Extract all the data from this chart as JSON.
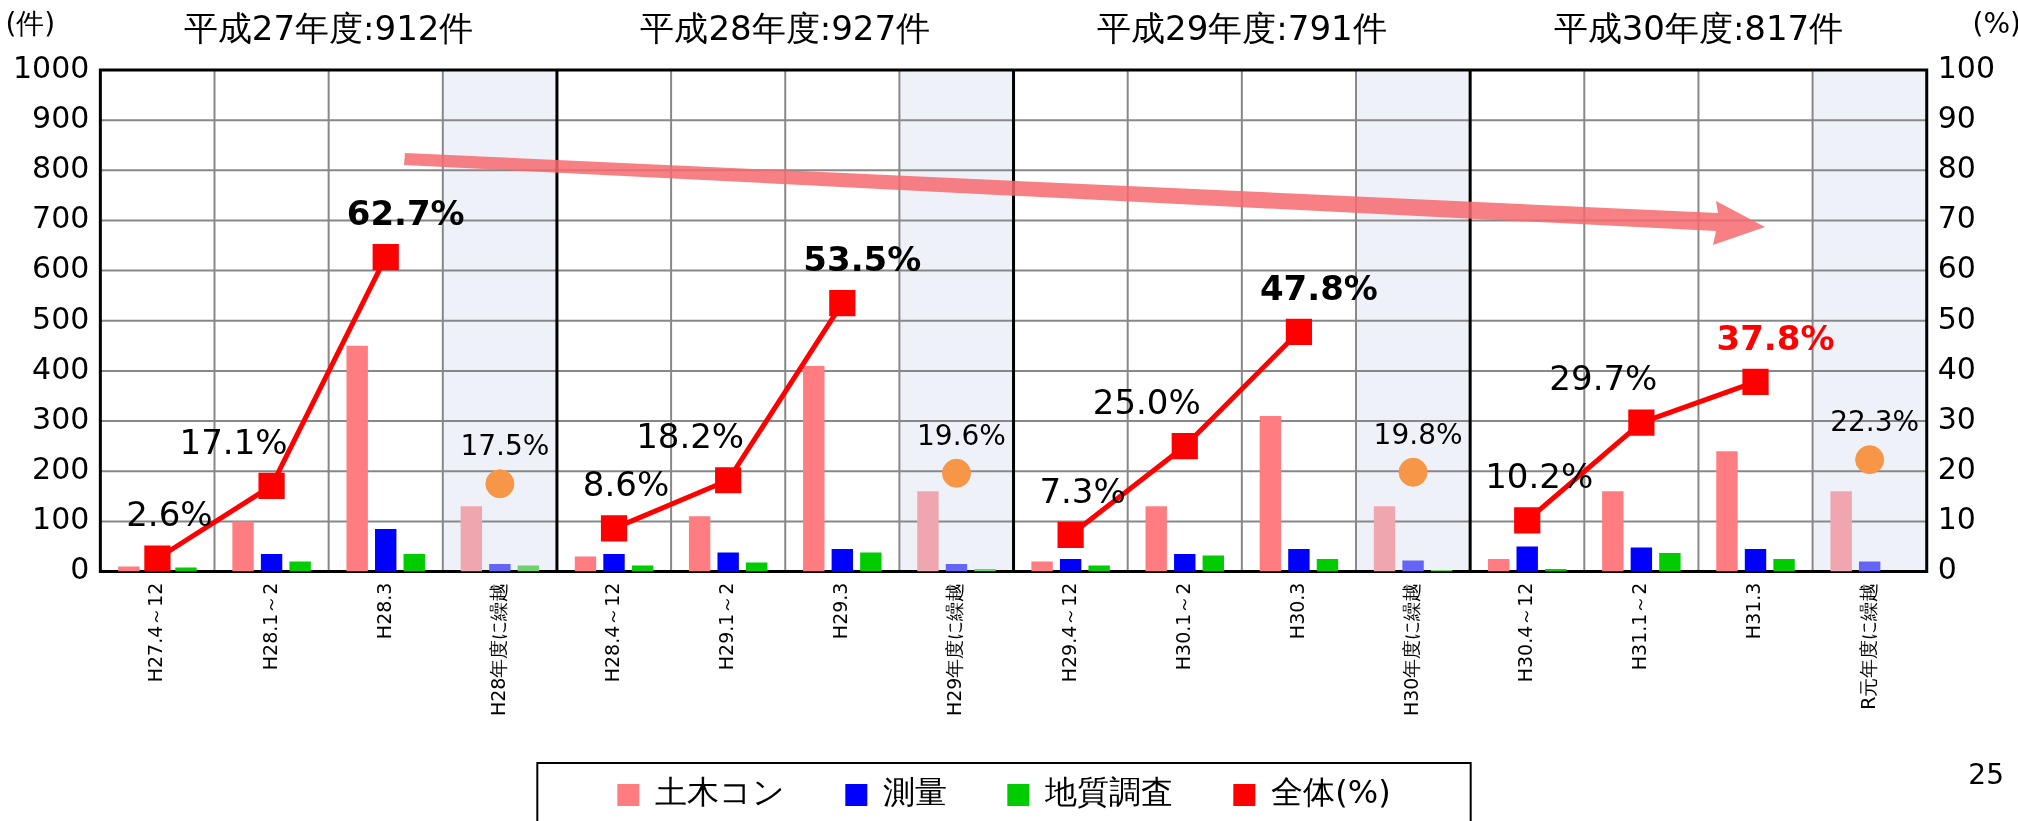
{
  "chart_data": {
    "type": "bar",
    "ylabel": "(件)",
    "y2label": "(%)",
    "categories": [
      "H27.4～12",
      "H28.1～2",
      "H28.3",
      "H28年度に繰越",
      "H28.4～12",
      "H29.1～2",
      "H29.3",
      "H29年度に繰越",
      "H29.4～12",
      "H30.1～2",
      "H30.3",
      "H30年度に繰越",
      "H30.4～12",
      "H31.1～2",
      "H31.3",
      "R元年度に繰越"
    ],
    "series": [
      {
        "name": "土木コン",
        "color": "#ff7c80",
        "colors": [
          "#ff7c80",
          "#ff7c80",
          "#ff7c80",
          "#f0a6ae",
          "#ff7c80",
          "#ff7c80",
          "#ff7c80",
          "#f0a6ae",
          "#ff7c80",
          "#ff7c80",
          "#ff7c80",
          "#f0a6ae",
          "#ff7c80",
          "#ff7c80",
          "#ff7c80",
          "#f0a6ae"
        ],
        "values": [
          10,
          100,
          450,
          130,
          30,
          110,
          410,
          160,
          20,
          130,
          310,
          130,
          25,
          160,
          240,
          160
        ]
      },
      {
        "name": "測量",
        "color": "#0000ff",
        "colors": [
          "#0000ff",
          "#0000ff",
          "#0000ff",
          "#6464f5",
          "#0000ff",
          "#0000ff",
          "#0000ff",
          "#6464f5",
          "#0000ff",
          "#0000ff",
          "#0000ff",
          "#6464f5",
          "#0000ff",
          "#0000ff",
          "#0000ff",
          "#6464f5"
        ],
        "values": [
          null,
          35,
          85,
          15,
          35,
          38,
          45,
          15,
          25,
          35,
          45,
          22,
          50,
          48,
          45,
          20
        ]
      },
      {
        "name": "地質調査",
        "color": "#00cc00",
        "colors": [
          "#00cc00",
          "#00cc00",
          "#00cc00",
          "#70d070",
          "#00cc00",
          "#00cc00",
          "#00cc00",
          "#70d070",
          "#00cc00",
          "#00cc00",
          "#00cc00",
          "#70d070",
          "#00cc00",
          "#00cc00",
          "#00cc00",
          "#70d070"
        ],
        "values": [
          8,
          20,
          35,
          12,
          12,
          18,
          38,
          5,
          12,
          32,
          25,
          3,
          5,
          37,
          25,
          null
        ]
      },
      {
        "name": "全体(%)",
        "type": "line",
        "axis": "y2",
        "color": "#ff0000",
        "marker": "square",
        "values": [
          2.6,
          17.1,
          62.7,
          null,
          8.6,
          18.2,
          53.5,
          null,
          7.3,
          25.0,
          47.8,
          null,
          10.2,
          29.7,
          37.8,
          null
        ],
        "value_labels": [
          "2.6%",
          "17.1%",
          "62.7%",
          null,
          "8.6%",
          "18.2%",
          "53.5%",
          null,
          "7.3%",
          "25.0%",
          "47.8%",
          null,
          "10.2%",
          "29.7%",
          "37.8%",
          null
        ]
      },
      {
        "type": "scatter",
        "axis": "y2",
        "color": "#f79646",
        "marker": "circle",
        "x": [
          "H28年度に繰越",
          "H29年度に繰越",
          "H30年度に繰越",
          "R元年度に繰越"
        ],
        "values": [
          17.5,
          19.6,
          19.8,
          22.3
        ],
        "value_labels": [
          "17.5%",
          "19.6%",
          "19.8%",
          "22.3%"
        ]
      }
    ],
    "ylim": [
      0,
      1000
    ],
    "yticks": [
      0,
      100,
      200,
      300,
      400,
      500,
      600,
      700,
      800,
      900,
      1000
    ],
    "y2lim": [
      0,
      100
    ],
    "y2ticks": [
      0,
      10,
      20,
      30,
      40,
      50,
      60,
      70,
      80,
      90,
      100
    ],
    "bands": [
      {
        "axis": "x",
        "from": "H28年度に繰越",
        "to": "H28年度に繰越",
        "color": "#eef2f8"
      },
      {
        "axis": "x",
        "from": "H29年度に繰越",
        "to": "H29年度に繰越",
        "color": "#eef2f8"
      },
      {
        "axis": "x",
        "from": "H30年度に繰越",
        "to": "H30年度に繰越",
        "color": "#eef2f8"
      },
      {
        "axis": "x",
        "from": "R元年度に繰越",
        "to": "R元年度に繰越",
        "color": "#eef2f8"
      }
    ],
    "annotations": [
      "平成27年度:912件",
      "平成28年度:927件",
      "平成29年度:791件",
      "平成30年度:817件",
      "25"
    ],
    "grid": true,
    "legend": "bottom"
  }
}
